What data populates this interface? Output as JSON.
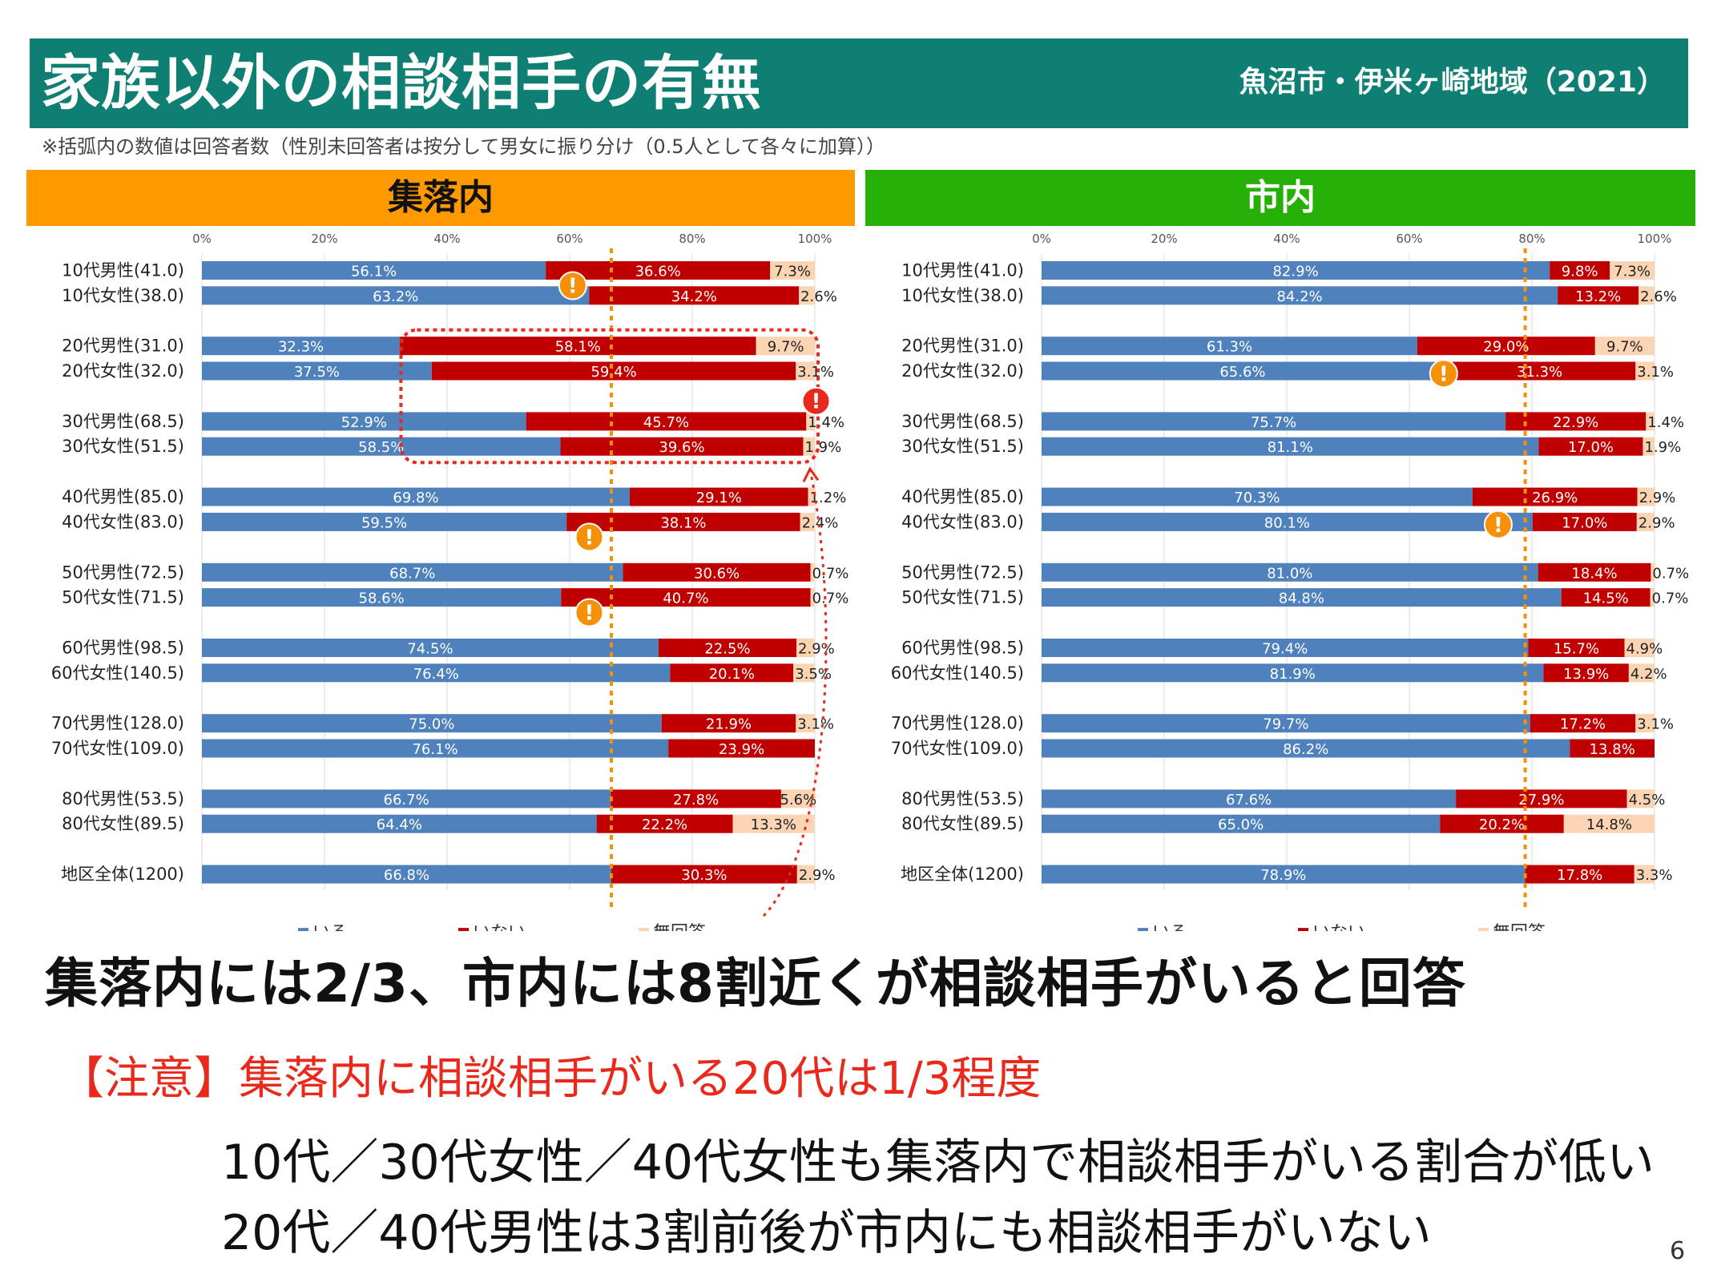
{
  "header": {
    "title": "家族以外の相談相手の有無",
    "region": "魚沼市・伊米ヶ崎地域（2021）"
  },
  "note": "※括弧内の数値は回答者数（性別未回答者は按分して男女に振り分け（0.5人として各々に加算））",
  "colors": {
    "header_bg": "#0f7f73",
    "left_band": "#ff9900",
    "right_band": "#26b007",
    "iru": "#4f81bd",
    "inai": "#c00000",
    "mukaito": "#fbd4b4",
    "reference_line": "#f79009",
    "warning_orange": "#f79009",
    "warning_red": "#e8291c"
  },
  "chart_data": [
    {
      "type": "bar",
      "orientation": "horizontal",
      "stacked": true,
      "title": "集落内",
      "xlim": [
        0,
        100
      ],
      "x_ticks": [
        "0%",
        "20%",
        "40%",
        "60%",
        "80%",
        "100%"
      ],
      "reference_line": 66.8,
      "legend_position": "bottom",
      "categories": [
        "10代男性(41.0)",
        "10代女性(38.0)",
        "20代男性(31.0)",
        "20代女性(32.0)",
        "30代男性(68.5)",
        "30代女性(51.5)",
        "40代男性(85.0)",
        "40代女性(83.0)",
        "50代男性(72.5)",
        "50代女性(71.5)",
        "60代男性(98.5)",
        "60代女性(140.5)",
        "70代男性(128.0)",
        "70代女性(109.0)",
        "80代男性(53.5)",
        "80代女性(89.5)",
        "地区全体(1200)"
      ],
      "series": [
        {
          "name": "いる",
          "values": [
            56.1,
            63.2,
            32.3,
            37.5,
            52.9,
            58.5,
            69.8,
            59.5,
            68.7,
            58.6,
            74.5,
            76.4,
            75.0,
            76.1,
            66.7,
            64.4,
            66.8
          ]
        },
        {
          "name": "いない",
          "values": [
            36.6,
            34.2,
            58.1,
            59.4,
            45.7,
            39.6,
            29.1,
            38.1,
            30.6,
            40.7,
            22.5,
            20.1,
            21.9,
            23.9,
            27.8,
            22.2,
            30.3
          ]
        },
        {
          "name": "無回答",
          "values": [
            7.3,
            2.6,
            9.7,
            3.1,
            1.4,
            1.9,
            1.2,
            2.4,
            0.7,
            0.7,
            2.9,
            3.5,
            3.1,
            0.0,
            5.6,
            13.3,
            2.9
          ]
        }
      ],
      "labels": [
        [
          "56.1%",
          "63.2%",
          "32.3%",
          "37.5%",
          "52.9%",
          "58.5%",
          "69.8%",
          "59.5%",
          "68.7%",
          "58.6%",
          "74.5%",
          "76.4%",
          "75.0%",
          "76.1%",
          "66.7%",
          "64.4%",
          "66.8%"
        ],
        [
          "36.6%",
          "34.2%",
          "58.1%",
          "59.4%",
          "45.7%",
          "39.6%",
          "29.1%",
          "38.1%",
          "30.6%",
          "40.7%",
          "22.5%",
          "20.1%",
          "21.9%",
          "23.9%",
          "27.8%",
          "22.2%",
          "30.3%"
        ],
        [
          "7.3%",
          "2.6%",
          "9.7%",
          "3.1%",
          "1.4%",
          "1.9%",
          "1.2%",
          "2.4%",
          "0.7%",
          "0.7%",
          "2.9%",
          "3.5%",
          "3.1%",
          "",
          "5.6%",
          "13.3%",
          "2.9%"
        ]
      ],
      "warning_markers": [
        {
          "row": 0,
          "value": 60.5,
          "color": "orange"
        },
        {
          "row": 7,
          "value": 63.2,
          "color": "orange"
        },
        {
          "row": 9,
          "value": 63.2,
          "color": "orange"
        },
        {
          "row": 3.6,
          "value": 100.2,
          "color": "red"
        }
      ],
      "highlight": {
        "rows": [
          2,
          5
        ],
        "x_from": 33,
        "x_to": 100
      }
    },
    {
      "type": "bar",
      "orientation": "horizontal",
      "stacked": true,
      "title": "市内",
      "xlim": [
        0,
        100
      ],
      "x_ticks": [
        "0%",
        "20%",
        "40%",
        "60%",
        "80%",
        "100%"
      ],
      "reference_line": 78.9,
      "legend_position": "bottom",
      "categories": [
        "10代男性(41.0)",
        "10代女性(38.0)",
        "20代男性(31.0)",
        "20代女性(32.0)",
        "30代男性(68.5)",
        "30代女性(51.5)",
        "40代男性(85.0)",
        "40代女性(83.0)",
        "50代男性(72.5)",
        "50代女性(71.5)",
        "60代男性(98.5)",
        "60代女性(140.5)",
        "70代男性(128.0)",
        "70代女性(109.0)",
        "80代男性(53.5)",
        "80代女性(89.5)",
        "地区全体(1200)"
      ],
      "series": [
        {
          "name": "いる",
          "values": [
            82.9,
            84.2,
            61.3,
            65.6,
            75.7,
            81.1,
            70.3,
            80.1,
            81.0,
            84.8,
            79.4,
            81.9,
            79.7,
            86.2,
            67.6,
            65.0,
            78.9
          ]
        },
        {
          "name": "いない",
          "values": [
            9.8,
            13.2,
            29.0,
            31.3,
            22.9,
            17.0,
            26.9,
            17.0,
            18.4,
            14.5,
            15.7,
            13.9,
            17.2,
            13.8,
            27.9,
            20.2,
            17.8
          ]
        },
        {
          "name": "無回答",
          "values": [
            7.3,
            2.6,
            9.7,
            3.1,
            1.4,
            1.9,
            2.9,
            2.9,
            0.7,
            0.7,
            4.9,
            4.2,
            3.1,
            0.0,
            4.5,
            14.8,
            3.3
          ]
        }
      ],
      "labels": [
        [
          "82.9%",
          "84.2%",
          "61.3%",
          "65.6%",
          "75.7%",
          "81.1%",
          "70.3%",
          "80.1%",
          "81.0%",
          "84.8%",
          "79.4%",
          "81.9%",
          "79.7%",
          "86.2%",
          "67.6%",
          "65.0%",
          "78.9%"
        ],
        [
          "9.8%",
          "13.2%",
          "29.0%",
          "31.3%",
          "22.9%",
          "17.0%",
          "26.9%",
          "17.0%",
          "18.4%",
          "14.5%",
          "15.7%",
          "13.9%",
          "17.2%",
          "13.8%",
          "27.9%",
          "20.2%",
          "17.8%"
        ],
        [
          "7.3%",
          "2.6%",
          "9.7%",
          "3.1%",
          "1.4%",
          "1.9%",
          "2.9%",
          "2.9%",
          "0.7%",
          "0.7%",
          "4.9%",
          "4.2%",
          "3.1%",
          "",
          "4.5%",
          "14.8%",
          "3.3%"
        ]
      ],
      "warning_markers": [
        {
          "row": 2.5,
          "value": 65.6,
          "color": "orange"
        },
        {
          "row": 6.5,
          "value": 74.5,
          "color": "orange"
        }
      ]
    }
  ],
  "headline": "集落内には2/3、市内には8割近くが相談相手がいると回答",
  "caution": "【注意】集落内に相談相手がいる20代は1/3程度",
  "line1": "10代／30代女性／40代女性も集落内で相談相手がいる割合が低い",
  "line2": "20代／40代男性は3割前後が市内にも相談相手がいない",
  "page_number": "6"
}
